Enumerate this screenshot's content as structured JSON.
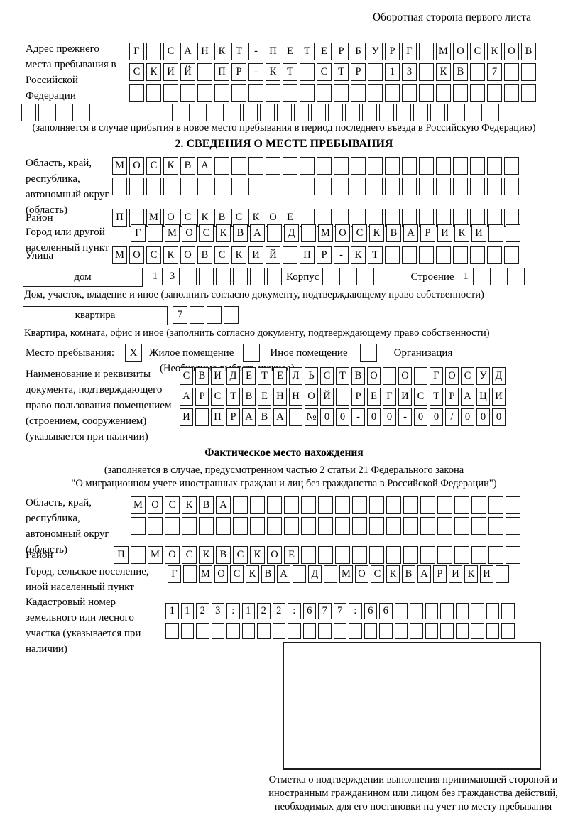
{
  "corner_note": "Оборотная сторона первого листа",
  "prev_address": {
    "label": "Адрес прежнего места пребывания в Российской Федерации",
    "row1": "Г САНКТ-ПЕТЕРБУРГ МОСКОВ",
    "row2": "СКИЙ ПР-КТ СТР 13 КВ 7",
    "row3": "",
    "row4": "",
    "note": "(заполняется в случае прибытия в новое место пребывания в период последнего въезда в Российскую Федерацию)"
  },
  "section2": {
    "title": "2. СВЕДЕНИЯ О МЕСТЕ ПРЕБЫВАНИЯ",
    "region_label": "Область, край, республика, автономный округ (область)",
    "region_row1": "МОСКВА",
    "region_row2": "",
    "district_label": "Район",
    "district_row": "П МОСКВСКОЕ",
    "city_label": "Город или другой населенный пункт",
    "city_row": "Г МОСКВА Д МОСКВАРИКИ",
    "street_label": "Улица",
    "street_row": "МОСКОВСКИЙ ПР-КТ",
    "house_box_label": "дом",
    "house_cells": "13",
    "korpus_label": "Корпус",
    "korpus_cells": "",
    "stroenie_label": "Строение",
    "stroenie_cells": "1",
    "house_note": "Дом, участок, владение и иное (заполнить согласно документу, подтверждающему право собственности)",
    "apartment_box_label": "квартира",
    "apartment_cells": "7",
    "apartment_note": "Квартира, комната, офис и иное (заполнить согласно документу, подтверждающему право собственности)",
    "stay_label": "Место пребывания:",
    "stay_mark": "X",
    "stay_option1": "Жилое помещение",
    "stay_option2": "Иное помещение",
    "stay_option3": "Организация",
    "stay_note": "(Необходимо выбрать нужное)",
    "doc_label": "Наименование и реквизиты документа, подтверждающего право пользования помещением (строением, сооружением) (указывается при наличии)",
    "doc_row1": "СВИДЕТЕЛЬСТВО О ГОСУД",
    "doc_row2": "АРСТВЕННОЙ РЕГИСТРАЦИ",
    "doc_row3": "И ПРАВА №00-00-00/000"
  },
  "actual": {
    "title": "Фактическое место нахождения",
    "note1": "(заполняется в случае, предусмотренном частью 2 статьи 21 Федерального закона",
    "note2": "\"О миграционном учете иностранных граждан и лиц без гражданства в Российской Федерации\")",
    "region_label": "Область, край, республика, автономный округ (область)",
    "region_row1": "МОСКВА",
    "region_row2": "",
    "district_label": "Район",
    "district_row": "П МОСКВСКОЕ",
    "city_label": "Город, сельское поселение, иной населенный пункт",
    "city_row": "Г МОСКВА Д МОСКВАРИКИ",
    "cadastre_label": "Кадастровый номер земельного или лесного участка (указывается при наличии)",
    "cadastre_row1": "1123:122:677:66",
    "cadastre_row2": ""
  },
  "stamp_caption": "Отметка о подтверждении выполнения принимающей стороной и иностранным гражданином или лицом без гражданства действий, необходимых для его постановки на учет по месту пребывания"
}
